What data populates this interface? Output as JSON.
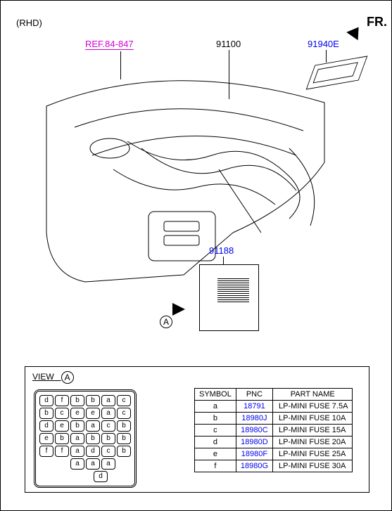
{
  "page": {
    "rhd_label": "(RHD)",
    "fr_label": "FR.",
    "ref_label": "REF.84-847",
    "callouts": {
      "c1": "91100",
      "c2": "91940E",
      "c3": "91188"
    },
    "marker_a": "A",
    "view_label": "VIEW",
    "view_marker": "A"
  },
  "fuse_grid": {
    "rows": [
      [
        "d",
        "f",
        "b",
        "b",
        "a",
        "c"
      ],
      [
        "b",
        "c",
        "e",
        "e",
        "a",
        "c"
      ],
      [
        "d",
        "e",
        "b",
        "a",
        "c",
        "b"
      ],
      [
        "e",
        "b",
        "a",
        "b",
        "b",
        "b"
      ],
      [
        "f",
        "f",
        "a",
        "d",
        "c",
        "b"
      ]
    ],
    "partial_rows": [
      [
        "a",
        "a",
        "a"
      ],
      [
        "d"
      ]
    ]
  },
  "parts_table": {
    "headers": {
      "symbol": "SYMBOL",
      "pnc": "PNC",
      "name": "PART NAME"
    },
    "rows": [
      {
        "symbol": "a",
        "pnc": "18791",
        "name": "LP-MINI FUSE 7.5A"
      },
      {
        "symbol": "b",
        "pnc": "18980J",
        "name": "LP-MINI FUSE 10A"
      },
      {
        "symbol": "c",
        "pnc": "18980C",
        "name": "LP-MINI FUSE 15A"
      },
      {
        "symbol": "d",
        "pnc": "18980D",
        "name": "LP-MINI FUSE 20A"
      },
      {
        "symbol": "e",
        "pnc": "18980F",
        "name": "LP-MINI FUSE 25A"
      },
      {
        "symbol": "f",
        "pnc": "18980G",
        "name": "LP-MINI FUSE 30A"
      }
    ]
  },
  "colors": {
    "link_blue": "#0000ee",
    "ref_magenta": "#d400d4",
    "line": "#000000",
    "background": "#ffffff"
  }
}
